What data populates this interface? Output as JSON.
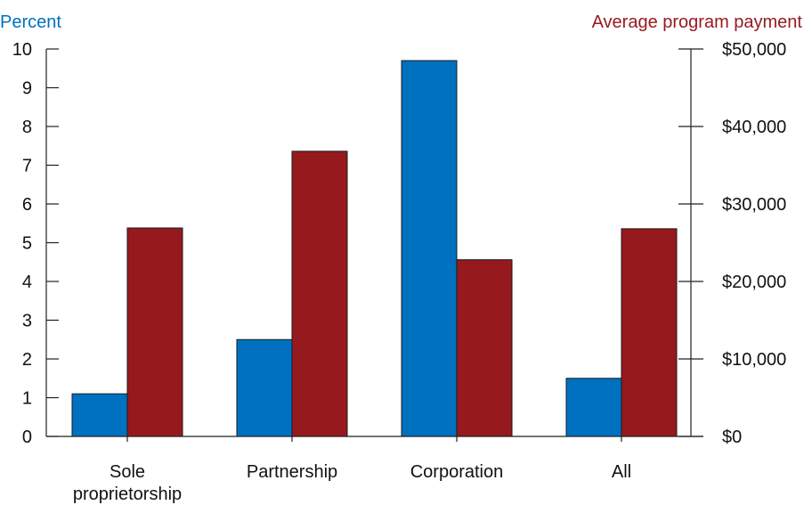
{
  "colors": {
    "percent": "#0070C0",
    "payment": "#96191E",
    "axis": "#222222"
  },
  "chart_data": {
    "type": "bar",
    "categories": [
      [
        "Sole",
        "proprietorship"
      ],
      [
        "Partnership"
      ],
      [
        "Corporation"
      ],
      [
        "All"
      ]
    ],
    "series": [
      {
        "axis": "left",
        "values": [
          1.1,
          2.5,
          9.7,
          1.5
        ]
      },
      {
        "axis": "right",
        "values": [
          26900,
          36800,
          22800,
          26800
        ]
      }
    ],
    "left_axis": {
      "label": "Percent",
      "ylim": [
        0,
        10
      ],
      "ticks": [
        "0",
        "1",
        "2",
        "3",
        "4",
        "5",
        "6",
        "7",
        "8",
        "9",
        "10"
      ]
    },
    "right_axis": {
      "label": "Average program payment",
      "ylim": [
        0,
        50000
      ],
      "ticks": [
        "$0",
        "$10,000",
        "$20,000",
        "$30,000",
        "$40,000",
        "$50,000"
      ]
    },
    "grid": false,
    "legend": "none"
  }
}
